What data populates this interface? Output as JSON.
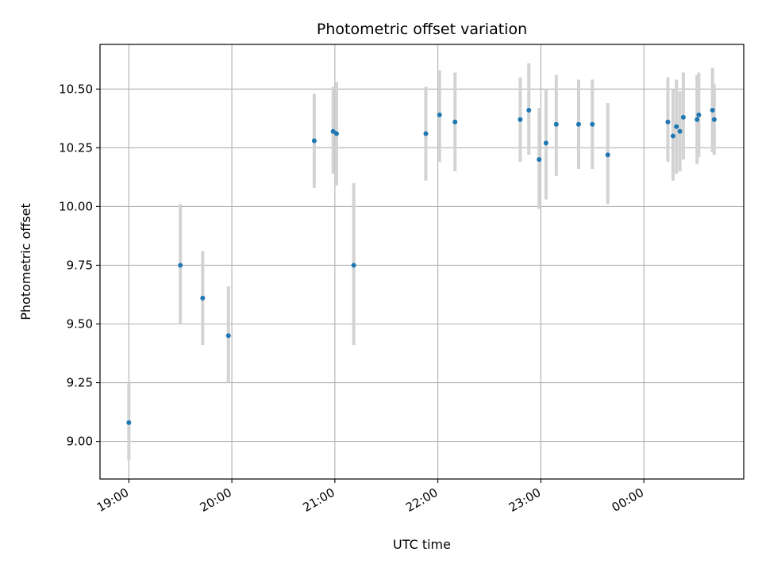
{
  "chart_data": {
    "type": "scatter",
    "title": "Photometric offset variation",
    "xlabel": "UTC time",
    "ylabel": "Photometric offset",
    "grid": true,
    "xlim_hours": [
      18.72,
      24.97
    ],
    "ylim": [
      8.84,
      10.69
    ],
    "x_ticks": [
      {
        "hour": 19,
        "label": "19:00"
      },
      {
        "hour": 20,
        "label": "20:00"
      },
      {
        "hour": 21,
        "label": "21:00"
      },
      {
        "hour": 22,
        "label": "22:00"
      },
      {
        "hour": 23,
        "label": "23:00"
      },
      {
        "hour": 24,
        "label": "00:00"
      }
    ],
    "y_ticks": [
      {
        "value": 9.0,
        "label": "9.00"
      },
      {
        "value": 9.25,
        "label": "9.25"
      },
      {
        "value": 9.5,
        "label": "9.50"
      },
      {
        "value": 9.75,
        "label": "9.75"
      },
      {
        "value": 10.0,
        "label": "10.00"
      },
      {
        "value": 10.25,
        "label": "10.25"
      },
      {
        "value": 10.5,
        "label": "10.50"
      }
    ],
    "point_color": "#1f77b4",
    "errorbar_color": "#d3d3d3",
    "points": [
      {
        "time": "19:00",
        "y": 9.08,
        "low": 8.92,
        "high": 9.25
      },
      {
        "time": "19:30",
        "y": 9.75,
        "low": 9.5,
        "high": 10.01
      },
      {
        "time": "19:43",
        "y": 9.61,
        "low": 9.41,
        "high": 9.81
      },
      {
        "time": "19:58",
        "y": 9.45,
        "low": 9.25,
        "high": 9.66
      },
      {
        "time": "20:48",
        "y": 10.28,
        "low": 10.08,
        "high": 10.48
      },
      {
        "time": "20:59",
        "y": 10.32,
        "low": 10.14,
        "high": 10.51
      },
      {
        "time": "21:01",
        "y": 10.31,
        "low": 10.09,
        "high": 10.53
      },
      {
        "time": "21:11",
        "y": 9.75,
        "low": 9.41,
        "high": 10.1
      },
      {
        "time": "21:53",
        "y": 10.31,
        "low": 10.11,
        "high": 10.51
      },
      {
        "time": "22:01",
        "y": 10.39,
        "low": 10.19,
        "high": 10.58
      },
      {
        "time": "22:10",
        "y": 10.36,
        "low": 10.15,
        "high": 10.57
      },
      {
        "time": "22:48",
        "y": 10.37,
        "low": 10.19,
        "high": 10.55
      },
      {
        "time": "22:53",
        "y": 10.41,
        "low": 10.22,
        "high": 10.61
      },
      {
        "time": "22:59",
        "y": 10.2,
        "low": 9.99,
        "high": 10.42
      },
      {
        "time": "23:03",
        "y": 10.27,
        "low": 10.03,
        "high": 10.5
      },
      {
        "time": "23:09",
        "y": 10.35,
        "low": 10.13,
        "high": 10.56
      },
      {
        "time": "23:22",
        "y": 10.35,
        "low": 10.16,
        "high": 10.54
      },
      {
        "time": "23:30",
        "y": 10.35,
        "low": 10.16,
        "high": 10.54
      },
      {
        "time": "23:39",
        "y": 10.22,
        "low": 10.01,
        "high": 10.44
      },
      {
        "time": "00:14",
        "y": 10.36,
        "low": 10.19,
        "high": 10.55
      },
      {
        "time": "00:17",
        "y": 10.3,
        "low": 10.11,
        "high": 10.5
      },
      {
        "time": "00:19",
        "y": 10.34,
        "low": 10.14,
        "high": 10.54
      },
      {
        "time": "00:21",
        "y": 10.32,
        "low": 10.15,
        "high": 10.49
      },
      {
        "time": "00:23",
        "y": 10.38,
        "low": 10.2,
        "high": 10.57
      },
      {
        "time": "00:31",
        "y": 10.37,
        "low": 10.18,
        "high": 10.56
      },
      {
        "time": "00:32",
        "y": 10.39,
        "low": 10.21,
        "high": 10.57
      },
      {
        "time": "00:40",
        "y": 10.41,
        "low": 10.23,
        "high": 10.59
      },
      {
        "time": "00:41",
        "y": 10.37,
        "low": 10.22,
        "high": 10.52
      }
    ]
  }
}
